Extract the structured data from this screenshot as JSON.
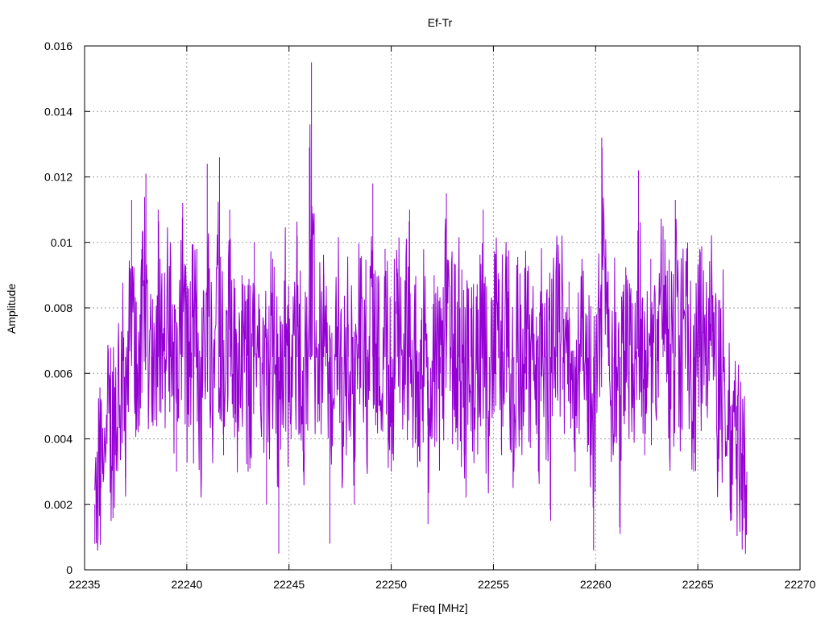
{
  "chart_data": {
    "type": "line",
    "title": "Ef-Tr",
    "xlabel": "Freq [MHz]",
    "ylabel": "Amplitude",
    "xlim": [
      22235,
      22270
    ],
    "ylim": [
      0,
      0.016
    ],
    "x_ticks": [
      "22235",
      "22240",
      "22245",
      "22250",
      "22255",
      "22260",
      "22265",
      "22270"
    ],
    "y_ticks": [
      "0",
      "0.002",
      "0.004",
      "0.006",
      "0.008",
      "0.01",
      "0.012",
      "0.014",
      "0.016"
    ],
    "grid": true,
    "legend": "none",
    "series": [
      {
        "color": "#9400d3",
        "x_range": [
          22235.5,
          22267.4
        ],
        "x": [
          22235.5,
          22235.8,
          22236.1,
          22236.5,
          22236.8,
          22237.0,
          22237.3,
          22237.5,
          22237.8,
          22238.0,
          22238.3,
          22238.6,
          22238.9,
          22239.2,
          22239.5,
          22239.8,
          22240.1,
          22240.4,
          22240.7,
          22241.0,
          22241.3,
          22241.6,
          22241.8,
          22242.1,
          22242.4,
          22242.7,
          22243.0,
          22243.3,
          22243.6,
          22243.9,
          22244.2,
          22244.5,
          22244.8,
          22245.1,
          22245.4,
          22245.7,
          22246.0,
          22246.1,
          22246.4,
          22246.7,
          22247.0,
          22247.3,
          22247.6,
          22247.9,
          22248.2,
          22248.5,
          22248.8,
          22249.1,
          22249.4,
          22249.7,
          22250.0,
          22250.3,
          22250.6,
          22250.9,
          22251.2,
          22251.5,
          22251.8,
          22252.1,
          22252.4,
          22252.7,
          22253.0,
          22253.3,
          22253.6,
          22253.9,
          22254.2,
          22254.5,
          22254.8,
          22255.1,
          22255.4,
          22255.7,
          22256.0,
          22256.3,
          22256.6,
          22256.9,
          22257.2,
          22257.5,
          22257.8,
          22258.1,
          22258.4,
          22258.7,
          22259.0,
          22259.3,
          22259.6,
          22259.9,
          22260.2,
          22260.3,
          22260.6,
          22260.9,
          22261.2,
          22261.5,
          22261.8,
          22262.1,
          22262.4,
          22262.7,
          22263.0,
          22263.3,
          22263.6,
          22263.9,
          22264.2,
          22264.5,
          22264.8,
          22265.1,
          22265.4,
          22265.7,
          22266.0,
          22266.3,
          22266.6,
          22266.9,
          22267.2,
          22267.4
        ],
        "y": [
          0.0008,
          0.0025,
          0.0045,
          0.0035,
          0.0055,
          0.0028,
          0.0113,
          0.005,
          0.0098,
          0.0121,
          0.0045,
          0.011,
          0.006,
          0.01,
          0.003,
          0.0112,
          0.0055,
          0.0095,
          0.003,
          0.0124,
          0.006,
          0.0126,
          0.0035,
          0.011,
          0.0045,
          0.009,
          0.003,
          0.01,
          0.005,
          0.002,
          0.0095,
          0.0005,
          0.0085,
          0.004,
          0.0102,
          0.003,
          0.0129,
          0.0155,
          0.0045,
          0.009,
          0.0008,
          0.0082,
          0.0025,
          0.0075,
          0.002,
          0.0088,
          0.004,
          0.0118,
          0.005,
          0.0098,
          0.003,
          0.0092,
          0.0055,
          0.011,
          0.004,
          0.008,
          0.0014,
          0.009,
          0.006,
          0.0115,
          0.005,
          0.0092,
          0.0035,
          0.008,
          0.006,
          0.011,
          0.0045,
          0.0095,
          0.0035,
          0.0085,
          0.003,
          0.009,
          0.0055,
          0.0075,
          0.003,
          0.008,
          0.0015,
          0.0102,
          0.0055,
          0.0088,
          0.003,
          0.0078,
          0.0045,
          0.0006,
          0.008,
          0.0132,
          0.0065,
          0.004,
          0.0011,
          0.009,
          0.005,
          0.0122,
          0.0035,
          0.0095,
          0.006,
          0.0105,
          0.0045,
          0.0113,
          0.0065,
          0.01,
          0.003,
          0.0098,
          0.005,
          0.008,
          0.003,
          0.0065,
          0.0015,
          0.005,
          0.0012,
          0.003
        ]
      }
    ]
  }
}
